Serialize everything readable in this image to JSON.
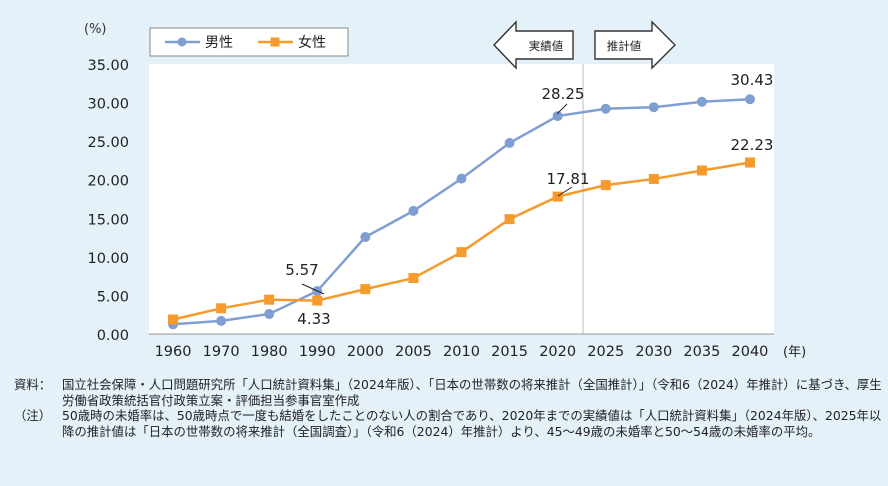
{
  "chart_data": {
    "type": "line",
    "y_unit_label": "(%)",
    "x_unit_label": "(年)",
    "categories": [
      "1960",
      "1970",
      "1980",
      "1990",
      "2000",
      "2005",
      "2010",
      "2015",
      "2020",
      "2025",
      "2030",
      "2035",
      "2040"
    ],
    "ylim": [
      0,
      35
    ],
    "yticks": [
      "0.00",
      "5.00",
      "10.00",
      "15.00",
      "20.00",
      "25.00",
      "30.00",
      "35.00"
    ],
    "grid": false,
    "legend_position": "top-left",
    "series": [
      {
        "name": "男性",
        "color": "#7f9fd3",
        "marker": "circle",
        "values": [
          1.26,
          1.7,
          2.6,
          5.57,
          12.57,
          15.96,
          20.14,
          24.77,
          28.25,
          29.2,
          29.4,
          30.1,
          30.43
        ]
      },
      {
        "name": "女性",
        "color": "#f59a2b",
        "marker": "square",
        "values": [
          1.88,
          3.33,
          4.45,
          4.33,
          5.82,
          7.25,
          10.61,
          14.89,
          17.81,
          19.3,
          20.1,
          21.2,
          22.23
        ]
      }
    ],
    "data_labels": [
      {
        "text": "5.57"
      },
      {
        "text": "4.33"
      },
      {
        "text": "28.25"
      },
      {
        "text": "17.81"
      },
      {
        "text": "30.43"
      },
      {
        "text": "22.23"
      }
    ],
    "arrows": {
      "actual": "実績値",
      "projected": "推計値"
    }
  },
  "notes": {
    "source_label": "資料：",
    "source_text": "国立社会保障・人口問題研究所「人口統計資料集」（2024年版）、「日本の世帯数の将来推計（全国推計）」（令和6（2024）年推計）に基づき、厚生労働省政策統括官付政策立案・評価担当参事官室作成",
    "note_label": "（注）",
    "note_text": "50歳時の未婚率は、50歳時点で一度も結婚をしたことのない人の割合であり、2020年までの実績値は「人口統計資料集」（2024年版）、2025年以降の推計値は「日本の世帯数の将来推計（全国調査）」（令和6（2024）年推計）より、45～49歳の未婚率と50～54歳の未婚率の平均。"
  }
}
